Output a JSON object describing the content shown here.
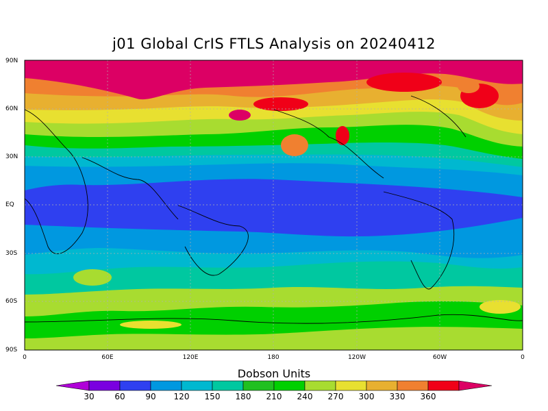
{
  "title": "j01 Global CrIS FTLS Analysis on 20240412",
  "map": {
    "lat_ticks": [
      "90N",
      "60N",
      "30N",
      "EQ",
      "30S",
      "60S",
      "90S"
    ],
    "lon_ticks": [
      "0",
      "60E",
      "120E",
      "180",
      "120W",
      "60W",
      "0"
    ],
    "grid": true,
    "field": "total column ozone",
    "low_region": "tropics",
    "high_region": "northern high latitudes"
  },
  "colorbar": {
    "title": "Dobson Units",
    "labels": [
      "30",
      "60",
      "90",
      "120",
      "150",
      "180",
      "210",
      "240",
      "270",
      "300",
      "330",
      "360"
    ],
    "colors": [
      "#b000d8",
      "#7a00e0",
      "#2f40f0",
      "#0098e0",
      "#00b8d0",
      "#00c8a0",
      "#20c020",
      "#00d000",
      "#a8dc30",
      "#e8e030",
      "#e8b030",
      "#f08030",
      "#f00018",
      "#dc0064"
    ]
  }
}
